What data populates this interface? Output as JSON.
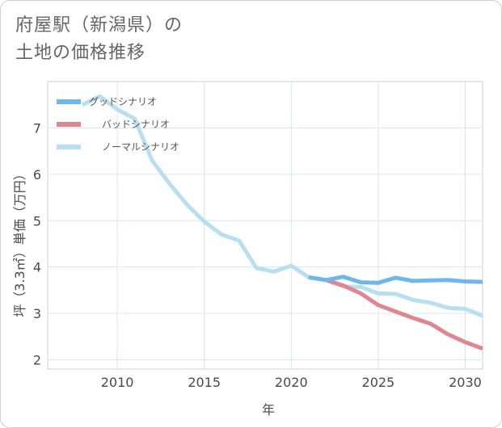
{
  "header": {
    "title_line1": "府屋駅（新潟県）の",
    "title_line2": "土地の価格推移"
  },
  "chart_data": {
    "type": "line",
    "title": "府屋駅（新潟県）の土地の価格推移",
    "xlabel": "年",
    "ylabel": "坪（3.3㎡）単価（万円）",
    "xlim": [
      2006,
      2031
    ],
    "ylim": [
      1.8,
      8.0
    ],
    "xticks": [
      2010,
      2015,
      2020,
      2025,
      2030
    ],
    "yticks": [
      2,
      3,
      4,
      5,
      6,
      7
    ],
    "grid": true,
    "legend_position": "top-left",
    "series": [
      {
        "name": "グッドシナリオ",
        "color": "#6cb8ea",
        "x": [
          2021,
          2022,
          2023,
          2024,
          2025,
          2026,
          2027,
          2028,
          2029,
          2030,
          2031
        ],
        "y": [
          3.78,
          3.72,
          3.79,
          3.67,
          3.66,
          3.77,
          3.7,
          3.71,
          3.72,
          3.69,
          3.68
        ]
      },
      {
        "name": "バッドシナリオ",
        "color": "#e0868e",
        "x": [
          2021,
          2022,
          2023,
          2024,
          2025,
          2026,
          2027,
          2028,
          2029,
          2030,
          2031
        ],
        "y": [
          3.78,
          3.72,
          3.6,
          3.43,
          3.18,
          3.04,
          2.9,
          2.78,
          2.55,
          2.38,
          2.24
        ]
      },
      {
        "name": "ノーマルシナリオ",
        "color": "#b8dff0",
        "x": [
          2008,
          2009,
          2010,
          2011,
          2012,
          2013,
          2014,
          2015,
          2016,
          2017,
          2018,
          2019,
          2020,
          2021,
          2022,
          2023,
          2024,
          2025,
          2026,
          2027,
          2028,
          2029,
          2030,
          2031
        ],
        "y": [
          7.5,
          7.68,
          7.4,
          7.2,
          6.3,
          5.8,
          5.35,
          4.98,
          4.7,
          4.57,
          3.98,
          3.9,
          4.03,
          3.78,
          3.72,
          3.58,
          3.57,
          3.43,
          3.42,
          3.29,
          3.23,
          3.12,
          3.1,
          2.95
        ]
      }
    ]
  }
}
